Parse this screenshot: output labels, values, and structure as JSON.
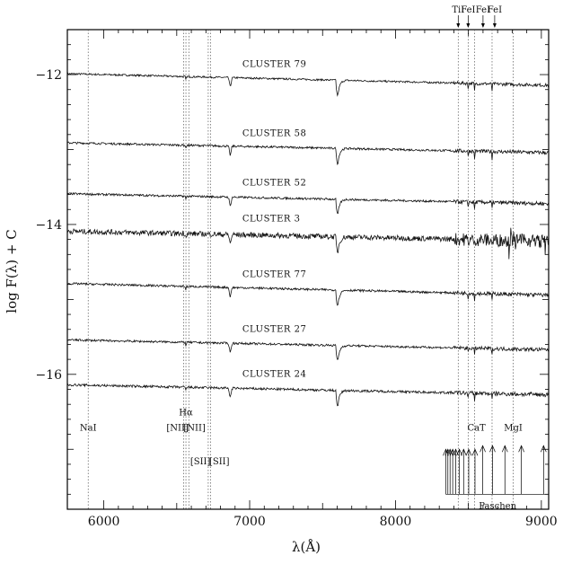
{
  "chart_data": {
    "type": "line",
    "title": "",
    "xlabel": "λ(Å)",
    "ylabel": "log F(λ) + C",
    "xlim": [
      5750,
      9050
    ],
    "ylim": [
      -17.8,
      -11.4
    ],
    "grid": false,
    "x_ticks": [
      {
        "value": 6000,
        "label": "6000"
      },
      {
        "value": 7000,
        "label": "7000"
      },
      {
        "value": 8000,
        "label": "8000"
      },
      {
        "value": 9000,
        "label": "9000"
      }
    ],
    "y_ticks": [
      {
        "value": -12,
        "label": "−12"
      },
      {
        "value": -14,
        "label": "−14"
      },
      {
        "value": -16,
        "label": "−16"
      }
    ],
    "series": [
      {
        "name": "CLUSTER 79",
        "offset": -12.0,
        "slope": -0.35,
        "noise": 0.012,
        "label_y": -11.9
      },
      {
        "name": "CLUSTER 58",
        "offset": -12.92,
        "slope": -0.3,
        "noise": 0.014,
        "label_y": -12.82
      },
      {
        "name": "CLUSTER 52",
        "offset": -13.6,
        "slope": -0.3,
        "noise": 0.014,
        "label_y": -13.48
      },
      {
        "name": "CLUSTER 3",
        "offset": -14.1,
        "slope": -0.3,
        "noise": 0.035,
        "label_y": -13.96
      },
      {
        "name": "CLUSTER 77",
        "offset": -14.8,
        "slope": -0.35,
        "noise": 0.014,
        "label_y": -14.7
      },
      {
        "name": "CLUSTER 27",
        "offset": -15.55,
        "slope": -0.3,
        "noise": 0.014,
        "label_y": -15.43
      },
      {
        "name": "CLUSTER 24",
        "offset": -16.15,
        "slope": -0.3,
        "noise": 0.016,
        "label_y": -16.03
      }
    ],
    "features": [
      {
        "name": "telluric_B",
        "center": 6867,
        "depth": 0.12,
        "width": 8
      },
      {
        "name": "telluric_A",
        "center": 7605,
        "depth": 0.6,
        "width": 14
      },
      {
        "name": "CaT1",
        "center": 8498,
        "depth": 0.06,
        "width": 3
      },
      {
        "name": "CaT2",
        "center": 8542,
        "depth": 0.1,
        "width": 3
      },
      {
        "name": "CaT3",
        "center": 8662,
        "depth": 0.09,
        "width": 3
      },
      {
        "name": "Halpha",
        "center": 6563,
        "depth": 0.05,
        "width": 3
      }
    ],
    "vertical_lines": [
      5893,
      6548,
      6563,
      6583,
      6716,
      6731,
      8430,
      8498,
      8542,
      8662,
      8807
    ],
    "line_labels": [
      {
        "text": "NaI",
        "x": 5893,
        "y": -16.75
      },
      {
        "text": "Hα",
        "x": 6563,
        "y": -16.55
      },
      {
        "text": "[NII]",
        "x": 6505,
        "y": -16.75
      },
      {
        "text": "[NII]",
        "x": 6622,
        "y": -16.75
      },
      {
        "text": "[SII]",
        "x": 6662,
        "y": -17.2
      },
      {
        "text": "[SII]",
        "x": 6792,
        "y": -17.2
      },
      {
        "text": "CaT",
        "x": 8555,
        "y": -16.75
      },
      {
        "text": "MgI",
        "x": 8807,
        "y": -16.75
      }
    ],
    "top_labels": [
      {
        "text": "TiI",
        "x": 8430
      },
      {
        "text": "FeI",
        "x": 8498
      },
      {
        "text": "FeI",
        "x": 8600
      },
      {
        "text": "FeI",
        "x": 8680
      }
    ],
    "paschen": {
      "label": "Paschen",
      "lines": [
        8345,
        8359,
        8374,
        8392,
        8413,
        8438,
        8467,
        8502,
        8545,
        8598,
        8665,
        8750,
        8863,
        9015
      ]
    }
  }
}
